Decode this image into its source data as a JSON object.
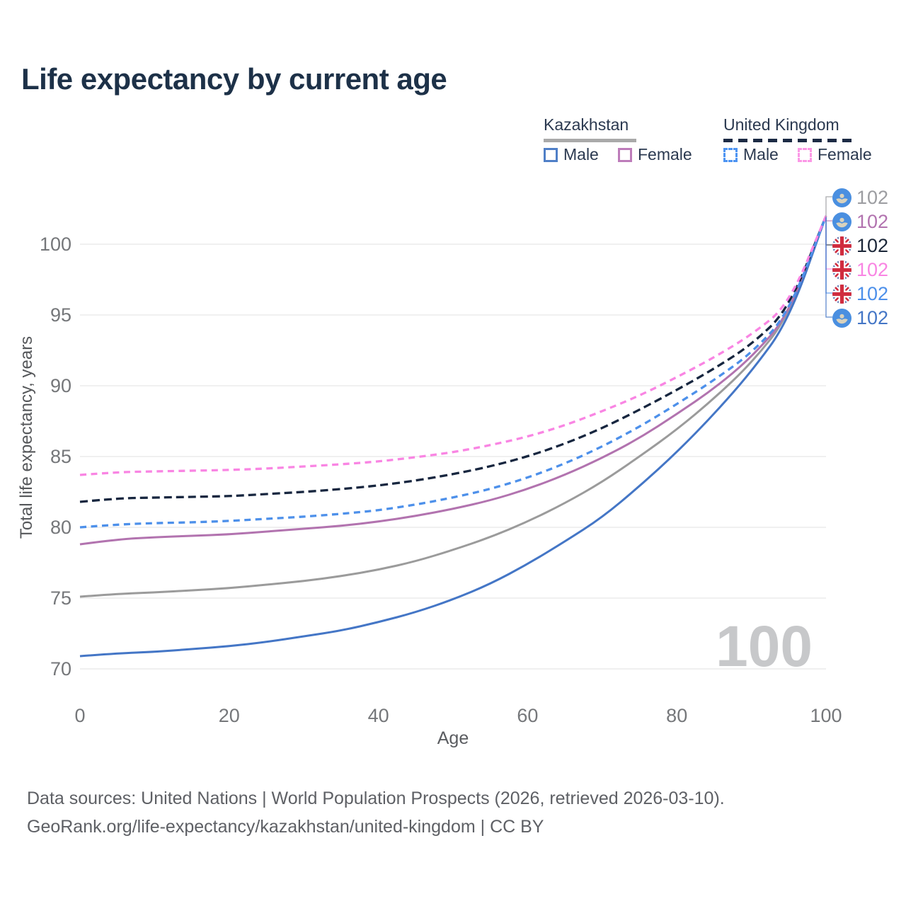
{
  "title": "Life expectancy by current age",
  "watermark": "100",
  "legend": {
    "groups": [
      {
        "label": "Kazakhstan",
        "line_style": "solid",
        "underline_color": "#a9a9a9",
        "items": [
          {
            "label": "Male",
            "color": "#4f7fc7",
            "dashed": false
          },
          {
            "label": "Female",
            "color": "#bd7cba",
            "dashed": false
          }
        ]
      },
      {
        "label": "United Kingdom",
        "line_style": "dashed",
        "underline_color": "#1c2b45",
        "items": [
          {
            "label": "Male",
            "color": "#4d94f2",
            "dashed": true
          },
          {
            "label": "Female",
            "color": "#fb98e6",
            "dashed": true
          }
        ]
      }
    ]
  },
  "end_labels": [
    {
      "value": "102",
      "flag": "kz",
      "series": "Kazakhstan total",
      "color": "#9c9da1"
    },
    {
      "value": "102",
      "flag": "kz",
      "series": "Kazakhstan Female",
      "color": "#b273af"
    },
    {
      "value": "102",
      "flag": "uk",
      "series": "United Kingdom total",
      "color": "#1c2739"
    },
    {
      "value": "102",
      "flag": "uk",
      "series": "United Kingdom Female",
      "color": "#f985e3"
    },
    {
      "value": "102",
      "flag": "uk",
      "series": "United Kingdom Male",
      "color": "#4d90ea"
    },
    {
      "value": "102",
      "flag": "kz",
      "series": "Kazakhstan Male",
      "color": "#4476c6"
    }
  ],
  "footer": {
    "line1": "Data sources: United Nations | World Population Prospects (2026, retrieved 2026-03-10).",
    "line2": "GeoRank.org/life-expectancy/kazakhstan/united-kingdom | CC BY"
  },
  "chart_data": {
    "type": "line",
    "title": "Life expectancy by current age",
    "xlabel": "Age",
    "ylabel": "Total life expectancy, years",
    "xlim": [
      0,
      100
    ],
    "ylim": [
      70,
      102
    ],
    "xticks": [
      0,
      20,
      40,
      60,
      80,
      100
    ],
    "yticks": [
      70,
      75,
      80,
      85,
      90,
      95,
      100
    ],
    "grid": "horizontal",
    "legend_position": "top-right",
    "current_age_indicator": 100,
    "x": [
      0,
      5,
      10,
      15,
      20,
      25,
      30,
      35,
      40,
      45,
      50,
      55,
      60,
      65,
      70,
      75,
      80,
      85,
      90,
      95,
      100
    ],
    "series": [
      {
        "name": "Kazakhstan total",
        "country": "Kazakhstan",
        "sex": "total",
        "color": "#9b9b9b",
        "dashed": false,
        "values": [
          75.1,
          75.3,
          75.4,
          75.55,
          75.7,
          75.95,
          76.2,
          76.55,
          77.0,
          77.6,
          78.4,
          79.3,
          80.4,
          81.7,
          83.2,
          85.0,
          86.9,
          89.1,
          91.6,
          94.9,
          102
        ]
      },
      {
        "name": "Kazakhstan Female",
        "country": "Kazakhstan",
        "sex": "female",
        "color": "#b273af",
        "dashed": false,
        "values": [
          78.8,
          79.15,
          79.3,
          79.4,
          79.5,
          79.7,
          79.9,
          80.1,
          80.4,
          80.8,
          81.3,
          81.9,
          82.7,
          83.7,
          84.9,
          86.3,
          88.0,
          89.8,
          92.0,
          95.0,
          102
        ]
      },
      {
        "name": "Kazakhstan Male",
        "country": "Kazakhstan",
        "sex": "male",
        "color": "#4476c6",
        "dashed": false,
        "values": [
          70.9,
          71.1,
          71.2,
          71.4,
          71.6,
          71.9,
          72.3,
          72.7,
          73.3,
          74.0,
          74.9,
          76.0,
          77.4,
          79.0,
          80.7,
          82.9,
          85.3,
          88.0,
          91.0,
          94.6,
          102
        ]
      },
      {
        "name": "United Kingdom total",
        "country": "United Kingdom",
        "sex": "total",
        "color": "#17263f",
        "dashed": true,
        "values": [
          81.8,
          82.05,
          82.1,
          82.15,
          82.2,
          82.35,
          82.5,
          82.7,
          82.95,
          83.3,
          83.75,
          84.3,
          85.0,
          85.9,
          87.0,
          88.3,
          89.7,
          91.2,
          92.9,
          95.4,
          102
        ]
      },
      {
        "name": "United Kingdom Male",
        "country": "United Kingdom",
        "sex": "male",
        "color": "#4d90ea",
        "dashed": true,
        "values": [
          80.0,
          80.2,
          80.3,
          80.35,
          80.45,
          80.6,
          80.75,
          80.95,
          81.2,
          81.6,
          82.1,
          82.7,
          83.5,
          84.5,
          85.7,
          87.1,
          88.7,
          90.4,
          92.3,
          95.1,
          102
        ]
      },
      {
        "name": "United Kingdom Female",
        "country": "United Kingdom",
        "sex": "female",
        "color": "#f985e3",
        "dashed": true,
        "values": [
          83.7,
          83.9,
          83.95,
          84.0,
          84.05,
          84.15,
          84.3,
          84.45,
          84.65,
          84.95,
          85.3,
          85.8,
          86.4,
          87.2,
          88.2,
          89.3,
          90.6,
          92.0,
          93.6,
          95.7,
          102
        ]
      }
    ]
  }
}
